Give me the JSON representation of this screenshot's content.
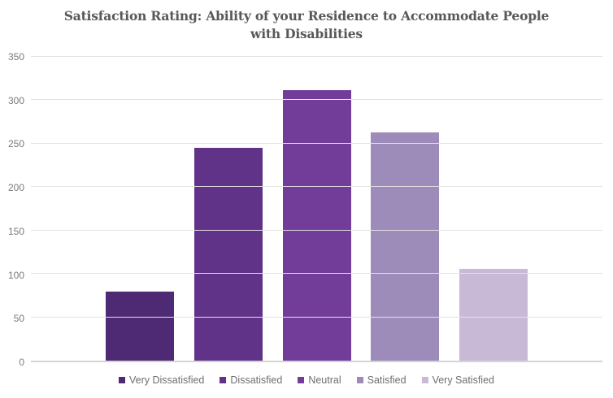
{
  "chart_data": {
    "type": "bar",
    "title": "Satisfaction Rating: Ability of your Residence to Accommodate People with Disabilities",
    "title_lines": [
      "Satisfaction Rating: Ability of your Residence to Accommodate People",
      "with Disabilities"
    ],
    "categories": [
      "Very Dissatisfied",
      "Dissatisfied",
      "Neutral",
      "Satisfied",
      "Very Satisfied"
    ],
    "values": [
      80,
      245,
      312,
      263,
      106
    ],
    "bar_colors": [
      "#4f2a74",
      "#603389",
      "#713d99",
      "#9d8bba",
      "#c8bad7"
    ],
    "xlabel": "",
    "ylabel": "",
    "ylim": [
      0,
      350
    ],
    "yticks": [
      0,
      50,
      100,
      150,
      200,
      250,
      300,
      350
    ],
    "grid": true,
    "legend_position": "bottom"
  },
  "colors": {
    "title_text": "#585858",
    "tick_text": "#7a7a7a",
    "legend_text": "#6f6f6f",
    "gridline": "#e3e3e3",
    "axis_line": "#d4d4d4",
    "background": "#ffffff"
  }
}
